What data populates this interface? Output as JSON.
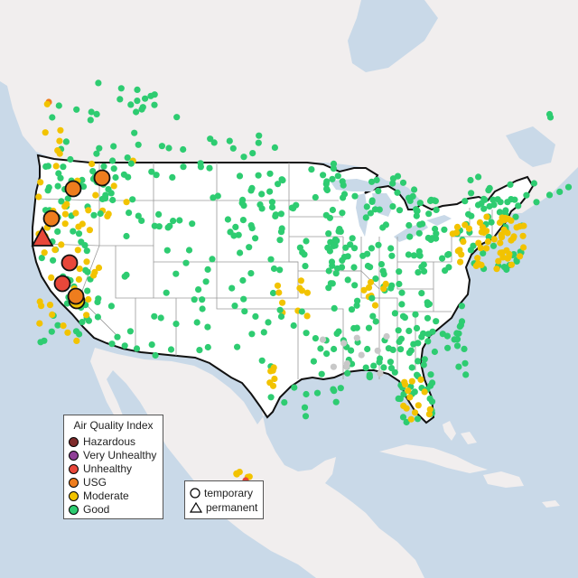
{
  "legend": {
    "title": "Air Quality Index",
    "categories": [
      {
        "label": "Hazardous",
        "color": "#7e2a2a"
      },
      {
        "label": "Very Unhealthy",
        "color": "#8f3f97"
      },
      {
        "label": "Unhealthy",
        "color": "#e8473a"
      },
      {
        "label": "USG",
        "color": "#ee7d1e"
      },
      {
        "label": "Moderate",
        "color": "#f2c300"
      },
      {
        "label": "Good",
        "color": "#2ecc71"
      }
    ]
  },
  "shape_legend": {
    "temporary_label": "temporary",
    "permanent_label": "permanent"
  },
  "colors": {
    "water": "#c9d9e8",
    "land": "#f1eeee",
    "us_land": "#ffffff",
    "border": "#111111",
    "state_lines": "#9a9a9a",
    "no_data_marker": "#c8c8c8"
  },
  "map": {
    "region": "United States",
    "marker_shapes": {
      "temporary": "circle",
      "permanent": "triangle"
    }
  }
}
